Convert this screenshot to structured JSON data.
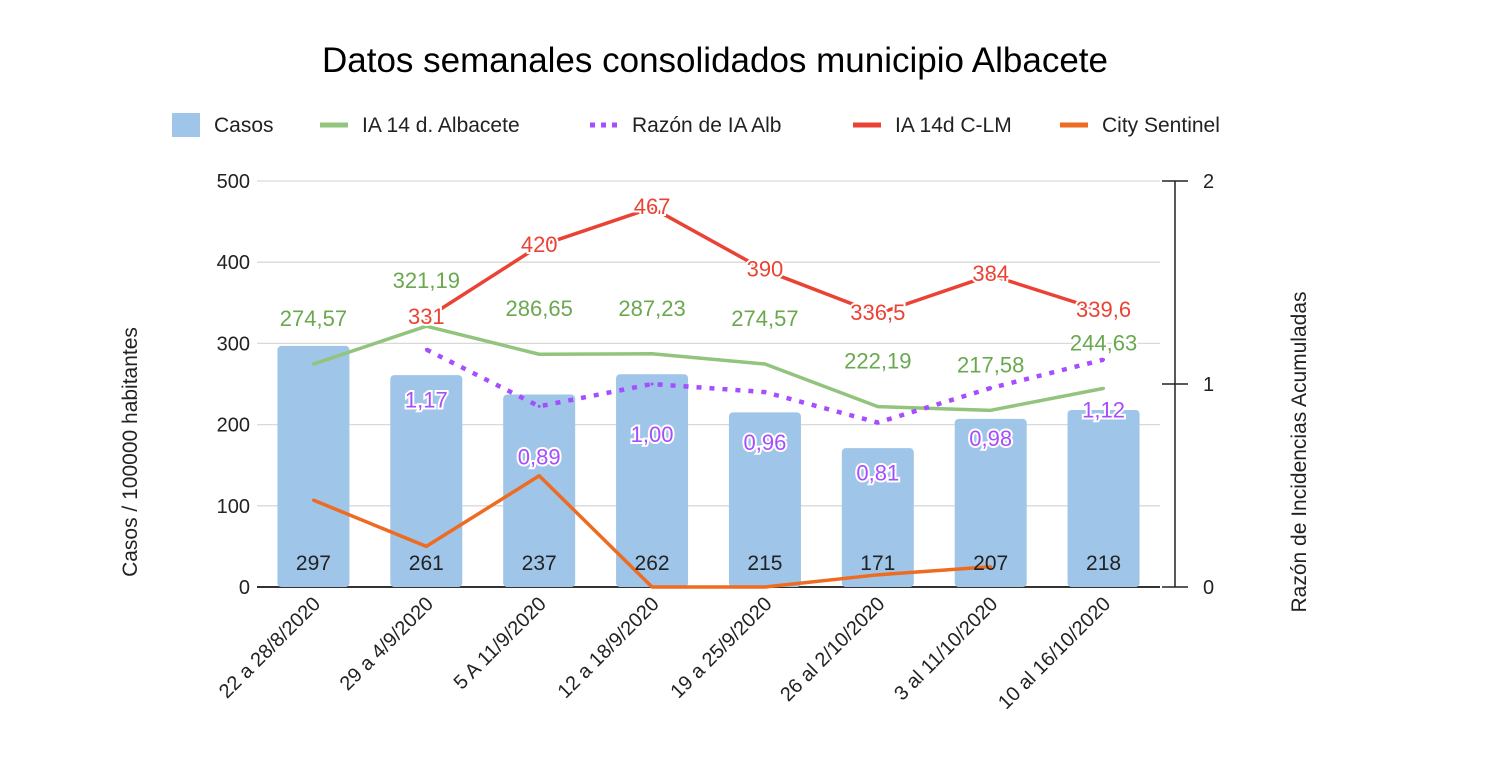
{
  "chart_data": {
    "type": "bar",
    "title": "Datos semanales consolidados municipio Albacete",
    "ylabel": "Casos / 100000 habitantes",
    "y2label": "Razón de Incidencias Acumuladas",
    "ylim": [
      0,
      500
    ],
    "y2lim": [
      0,
      2
    ],
    "yticks": [
      "0",
      "100",
      "200",
      "300",
      "400",
      "500"
    ],
    "y2ticks": [
      "0",
      "1",
      "2"
    ],
    "grid": true,
    "legend_position": "top",
    "categories": [
      "22 a 28/8/2020",
      "29 a 4/9/2020",
      "5 A 11/9/2020",
      "12 a 18/9/2020",
      "19 a 25/9/2020",
      "26 al 2/10/2020",
      "3 al 11/10/2020",
      "10 al 16/10/2020"
    ],
    "series": [
      {
        "name": "Casos",
        "type": "bar",
        "axis": "left",
        "color": "#9fc5e8",
        "values": [
          297,
          261,
          237,
          262,
          215,
          171,
          207,
          218
        ],
        "labels": [
          "297",
          "261",
          "237",
          "262",
          "215",
          "171",
          "207",
          "218"
        ],
        "label_color": "#222222"
      },
      {
        "name": "IA 14 d. Albacete",
        "type": "line",
        "axis": "left",
        "color": "#93c47d",
        "values": [
          274.57,
          321.19,
          286.65,
          287.23,
          274.57,
          222.19,
          217.58,
          244.63
        ],
        "labels": [
          "274,57",
          "321,19",
          "286,65",
          "287,23",
          "274,57",
          "222,19",
          "217,58",
          "244,63"
        ],
        "label_color": "#6aa84f"
      },
      {
        "name": "Razón de IA Alb",
        "type": "line",
        "dash": "dotted",
        "axis": "right",
        "color": "#a64dff",
        "values": [
          null,
          1.17,
          0.89,
          1.0,
          0.96,
          0.81,
          0.98,
          1.12
        ],
        "labels": [
          null,
          "1,17",
          "0,89",
          "1,00",
          "0,96",
          "0,81",
          "0,98",
          "1,12"
        ],
        "label_color": "#a64dff"
      },
      {
        "name": "IA 14d C-LM",
        "type": "line",
        "axis": "left",
        "color": "#ea4335",
        "values": [
          null,
          331,
          420,
          467,
          390,
          336.5,
          384,
          339.6
        ],
        "labels": [
          null,
          "331",
          "420",
          "467",
          "390",
          "336,5",
          "384",
          "339,6"
        ],
        "label_color": "#ea4335"
      },
      {
        "name": "City Sentinel",
        "type": "line",
        "axis": "left",
        "color": "#ee6b22",
        "values": [
          107,
          50,
          137,
          0,
          0,
          15,
          25,
          null
        ],
        "labels": []
      }
    ]
  }
}
